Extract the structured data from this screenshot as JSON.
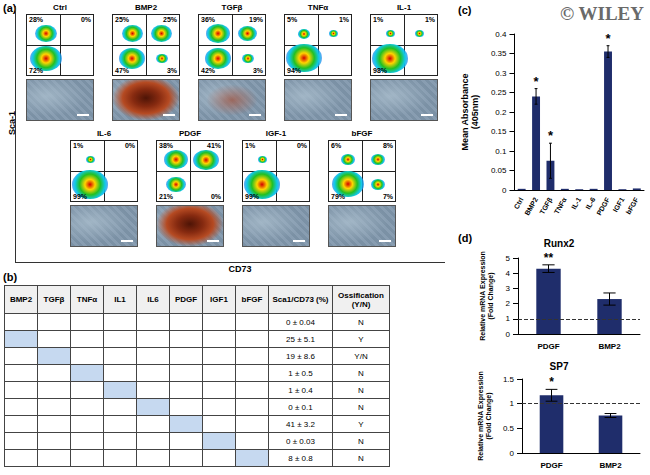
{
  "panel_labels": [
    "(a)",
    "(b)",
    "(c)",
    "(d)"
  ],
  "watermark": "© WILEY",
  "flow_panel": {
    "y_label": "Sca-1",
    "x_label": "CD73",
    "plots": [
      {
        "title": "Ctrl",
        "quadrants": {
          "ul": {
            "value": 28,
            "label": "28%"
          },
          "ur": {
            "value": 0,
            "label": "0%"
          },
          "ll": {
            "value": 72,
            "label": "72%"
          },
          "lr": null
        }
      },
      {
        "title": "BMP2",
        "quadrants": {
          "ul": {
            "value": 25,
            "label": "25%"
          },
          "ur": {
            "value": 25,
            "label": "25%"
          },
          "ll": {
            "value": 47,
            "label": "47%"
          },
          "lr": {
            "value": 3,
            "label": "3%"
          }
        }
      },
      {
        "title": "TGFβ",
        "quadrants": {
          "ul": {
            "value": 36,
            "label": "36%"
          },
          "ur": {
            "value": 19,
            "label": "19%"
          },
          "ll": {
            "value": 42,
            "label": "42%"
          },
          "lr": {
            "value": 3,
            "label": "3%"
          }
        }
      },
      {
        "title": "TNFα",
        "quadrants": {
          "ul": {
            "value": 5,
            "label": "5%"
          },
          "ur": {
            "value": 1,
            "label": "1%"
          },
          "ll": {
            "value": 94,
            "label": "94%"
          },
          "lr": null
        }
      },
      {
        "title": "IL-1",
        "quadrants": {
          "ul": {
            "value": 1,
            "label": "1%"
          },
          "ur": {
            "value": 1,
            "label": "1%"
          },
          "ll": {
            "value": 98,
            "label": "98%"
          },
          "lr": null
        }
      },
      {
        "title": "IL-6",
        "quadrants": {
          "ul": {
            "value": 1,
            "label": "1%"
          },
          "ur": {
            "value": 0,
            "label": "0%"
          },
          "ll": {
            "value": 99,
            "label": "99%"
          },
          "lr": null
        }
      },
      {
        "title": "PDGF",
        "quadrants": {
          "ul": {
            "value": 38,
            "label": "38%"
          },
          "ur": {
            "value": 41,
            "label": "41%"
          },
          "ll": {
            "value": 21,
            "label": "21%"
          },
          "lr": {
            "value": 0,
            "label": "0%"
          }
        }
      },
      {
        "title": "IGF-1",
        "quadrants": {
          "ul": {
            "value": 1,
            "label": "1%"
          },
          "ur": {
            "value": 0,
            "label": "0%"
          },
          "ll": {
            "value": 99,
            "label": "99%"
          },
          "lr": null
        }
      },
      {
        "title": "bFGF",
        "quadrants": {
          "ul": {
            "value": 6,
            "label": "6%"
          },
          "ur": {
            "value": 8,
            "label": "8%"
          },
          "ll": {
            "value": 79,
            "label": "79%"
          },
          "lr": {
            "value": 7,
            "label": "7%"
          }
        }
      }
    ]
  },
  "table": {
    "columns": [
      "BMP2",
      "TGFβ",
      "TNFα",
      "IL1",
      "IL6",
      "PDGF",
      "IGF1",
      "bFGF",
      "Sca1/CD73 (%)",
      "Ossification (Y/N)"
    ],
    "rows": [
      {
        "highlight": null,
        "sca1_cd73": "0 ± 0.04",
        "ossification": "N"
      },
      {
        "highlight": "BMP2",
        "sca1_cd73": "25 ± 5.1",
        "ossification": "Y"
      },
      {
        "highlight": "TGFβ",
        "sca1_cd73": "19 ± 8.6",
        "ossification": "Y/N"
      },
      {
        "highlight": "TNFα",
        "sca1_cd73": "1 ± 0.5",
        "ossification": "N"
      },
      {
        "highlight": "IL1",
        "sca1_cd73": "1 ± 0.4",
        "ossification": "N"
      },
      {
        "highlight": "IL6",
        "sca1_cd73": "0 ± 0.1",
        "ossification": "N"
      },
      {
        "highlight": "PDGF",
        "sca1_cd73": "41 ± 3.2",
        "ossification": "Y"
      },
      {
        "highlight": "IGF1",
        "sca1_cd73": "0 ± 0.03",
        "ossification": "N"
      },
      {
        "highlight": "bFGF",
        "sca1_cd73": "8 ± 0.8",
        "ossification": "N"
      }
    ]
  },
  "chart_data": [
    {
      "type": "bar",
      "y_label": "Mean Absorbance (405nm)",
      "categories": [
        "Ctrl",
        "BMP2",
        "TGFβ",
        "TNFα",
        "IL-1",
        "IL-6",
        "PDGF",
        "IGF1",
        "bFGF"
      ],
      "values": [
        0.003,
        0.24,
        0.075,
        0.003,
        0.002,
        0.003,
        0.355,
        0.002,
        0.004
      ],
      "errors": [
        0,
        0.02,
        0.045,
        0,
        0,
        0,
        0.015,
        0,
        0
      ],
      "significance": [
        null,
        "*",
        "*",
        null,
        null,
        null,
        "*",
        null,
        null
      ],
      "color": "#1f2d6b",
      "ylim": [
        0,
        0.4
      ],
      "yticks": [
        0,
        0.05,
        0.1,
        0.15,
        0.2,
        0.25,
        0.3,
        0.35,
        0.4
      ],
      "grid": false
    },
    {
      "type": "bar",
      "title": "Runx2",
      "y_label": "Relative mRNA Expression (Fold Change)",
      "categories": [
        "PDGF",
        "BMP2"
      ],
      "values": [
        4.3,
        2.3
      ],
      "errors": [
        0.25,
        0.4
      ],
      "significance": [
        "**",
        null
      ],
      "reference_line": 1,
      "color": "#1f2d6b",
      "ylim": [
        0,
        5
      ],
      "yticks": [
        0,
        1,
        2,
        3,
        4,
        5
      ],
      "grid": false
    },
    {
      "type": "bar",
      "title": "SP7",
      "y_label": "Relative mRNA Expression (Fold Change)",
      "categories": [
        "PDGF",
        "BMP2"
      ],
      "values": [
        1.17,
        0.76
      ],
      "errors": [
        0.12,
        0.04
      ],
      "significance": [
        "*",
        null
      ],
      "reference_line": 1,
      "color": "#1f2d6b",
      "ylim": [
        0,
        1.5
      ],
      "yticks": [
        0,
        0.5,
        1,
        1.5
      ],
      "grid": false
    }
  ]
}
